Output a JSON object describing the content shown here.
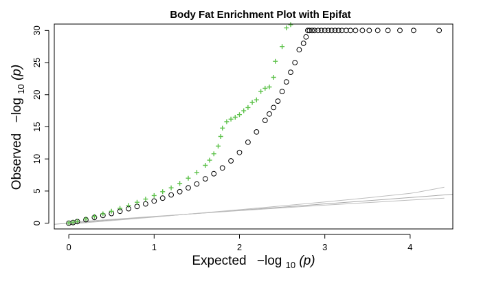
{
  "chart_data": {
    "type": "scatter",
    "title": "Body Fat Enrichment Plot with Epifat",
    "xlabel": {
      "prefix": "Expected",
      "expr": "−log",
      "sub": "10",
      "arg": "(p)"
    },
    "ylabel": {
      "prefix": "Observed",
      "expr": "−log",
      "sub": "10",
      "arg": "(p)"
    },
    "xlim": [
      -0.17,
      4.5
    ],
    "ylim": [
      -0.9,
      31
    ],
    "x_ticks": [
      0,
      1,
      2,
      3,
      4
    ],
    "y_ticks": [
      0,
      5,
      10,
      15,
      20,
      25,
      30
    ],
    "x_tick_labels": [
      "0",
      "1",
      "2",
      "3",
      "4"
    ],
    "y_tick_labels": [
      "0",
      "5",
      "10",
      "15",
      "20",
      "25",
      "30"
    ],
    "grid": false,
    "legend": "none",
    "series": [
      {
        "marker": "circle-open",
        "color": "#000000",
        "points": [
          [
            0.0,
            0.0
          ],
          [
            0.05,
            0.1
          ],
          [
            0.1,
            0.25
          ],
          [
            0.2,
            0.55
          ],
          [
            0.3,
            0.9
          ],
          [
            0.4,
            1.2
          ],
          [
            0.5,
            1.5
          ],
          [
            0.6,
            1.85
          ],
          [
            0.7,
            2.25
          ],
          [
            0.8,
            2.6
          ],
          [
            0.9,
            3.0
          ],
          [
            1.0,
            3.45
          ],
          [
            1.1,
            3.9
          ],
          [
            1.2,
            4.4
          ],
          [
            1.3,
            4.9
          ],
          [
            1.4,
            5.5
          ],
          [
            1.5,
            6.1
          ],
          [
            1.6,
            6.9
          ],
          [
            1.7,
            7.7
          ],
          [
            1.8,
            8.6
          ],
          [
            1.9,
            9.7
          ],
          [
            2.0,
            11.0
          ],
          [
            2.1,
            12.6
          ],
          [
            2.2,
            14.2
          ],
          [
            2.3,
            16.0
          ],
          [
            2.35,
            17.0
          ],
          [
            2.4,
            18.0
          ],
          [
            2.45,
            19.0
          ],
          [
            2.5,
            20.5
          ],
          [
            2.55,
            22.0
          ],
          [
            2.6,
            23.5
          ],
          [
            2.65,
            25.0
          ],
          [
            2.7,
            27.0
          ],
          [
            2.75,
            28.0
          ],
          [
            2.78,
            29.0
          ],
          [
            2.8,
            30.0
          ],
          [
            2.82,
            30.0
          ],
          [
            2.85,
            30.0
          ],
          [
            2.88,
            30.0
          ],
          [
            2.92,
            30.0
          ],
          [
            2.96,
            30.0
          ],
          [
            3.0,
            30.0
          ],
          [
            3.04,
            30.0
          ],
          [
            3.08,
            30.0
          ],
          [
            3.12,
            30.0
          ],
          [
            3.16,
            30.0
          ],
          [
            3.2,
            30.0
          ],
          [
            3.25,
            30.0
          ],
          [
            3.3,
            30.0
          ],
          [
            3.36,
            30.0
          ],
          [
            3.44,
            30.0
          ],
          [
            3.52,
            30.0
          ],
          [
            3.62,
            30.0
          ],
          [
            3.74,
            30.0
          ],
          [
            3.88,
            30.0
          ],
          [
            4.04,
            30.0
          ],
          [
            4.34,
            30.0
          ]
        ]
      },
      {
        "marker": "plus",
        "color": "#5ec24b",
        "points": [
          [
            0.0,
            0.05
          ],
          [
            0.05,
            0.15
          ],
          [
            0.1,
            0.3
          ],
          [
            0.2,
            0.65
          ],
          [
            0.3,
            1.05
          ],
          [
            0.4,
            1.45
          ],
          [
            0.5,
            1.85
          ],
          [
            0.6,
            2.3
          ],
          [
            0.7,
            2.75
          ],
          [
            0.8,
            3.25
          ],
          [
            0.9,
            3.75
          ],
          [
            1.0,
            4.3
          ],
          [
            1.1,
            4.9
          ],
          [
            1.2,
            5.5
          ],
          [
            1.3,
            6.2
          ],
          [
            1.4,
            7.0
          ],
          [
            1.5,
            7.9
          ],
          [
            1.6,
            9.0
          ],
          [
            1.65,
            9.8
          ],
          [
            1.7,
            10.8
          ],
          [
            1.75,
            12.0
          ],
          [
            1.78,
            13.5
          ],
          [
            1.8,
            14.8
          ],
          [
            1.85,
            15.8
          ],
          [
            1.9,
            16.2
          ],
          [
            1.95,
            16.5
          ],
          [
            2.0,
            16.9
          ],
          [
            2.05,
            17.5
          ],
          [
            2.1,
            18.0
          ],
          [
            2.15,
            18.8
          ],
          [
            2.2,
            19.2
          ],
          [
            2.25,
            20.5
          ],
          [
            2.3,
            21.0
          ],
          [
            2.35,
            21.2
          ],
          [
            2.4,
            22.7
          ],
          [
            2.42,
            25.2
          ],
          [
            2.5,
            27.5
          ],
          [
            2.55,
            30.4
          ],
          [
            2.6,
            30.9
          ]
        ]
      }
    ],
    "reference_lines": [
      {
        "color": "#a9a9a9",
        "points": [
          [
            -0.17,
            -0.17
          ],
          [
            4.5,
            4.5
          ]
        ]
      },
      {
        "color": "#bdbdbd",
        "points": [
          [
            0,
            -0.15
          ],
          [
            1,
            0.95
          ],
          [
            2,
            2.1
          ],
          [
            3,
            3.3
          ],
          [
            3.5,
            3.95
          ],
          [
            4,
            4.65
          ],
          [
            4.1,
            4.85
          ],
          [
            4.3,
            5.35
          ],
          [
            4.4,
            5.6
          ]
        ]
      },
      {
        "color": "#bdbdbd",
        "points": [
          [
            0,
            0.12
          ],
          [
            1,
            1.05
          ],
          [
            2,
            1.95
          ],
          [
            3,
            2.8
          ],
          [
            3.5,
            3.2
          ],
          [
            4,
            3.6
          ],
          [
            4.4,
            3.9
          ]
        ]
      }
    ]
  }
}
